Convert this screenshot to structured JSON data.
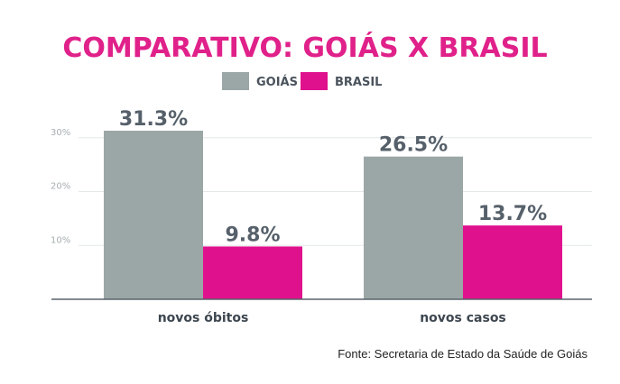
{
  "chart_data": {
    "type": "bar",
    "title": "COMPARATIVO: GOIÁS X BRASIL",
    "categories": [
      "novos óbitos",
      "novos casos"
    ],
    "series": [
      {
        "name": "GOIÁS",
        "values": [
          31.3,
          26.5
        ],
        "labels": [
          "31.3%",
          "26.5%"
        ]
      },
      {
        "name": "BRASIL",
        "values": [
          9.8,
          13.7
        ],
        "labels": [
          "9.8%",
          "13.7%"
        ]
      }
    ],
    "yticks": [
      10,
      20,
      30
    ],
    "ytick_labels": [
      "10%",
      "20%",
      "30%"
    ],
    "ylim": [
      0,
      31.3
    ],
    "grid": true,
    "legend": "top-center",
    "xlabel": "",
    "ylabel": ""
  },
  "source": "Fonte: Secretaria de Estado da Saúde de Goiás",
  "colors": {
    "title": "#e0218a",
    "goias": "#9ba7a6",
    "brasil": "#e0118d",
    "value_label": "#56606a",
    "category_label": "#3d464f",
    "tick": "#a6aeb0",
    "grid": "#e4e8e8",
    "axis": "#5a636b"
  }
}
